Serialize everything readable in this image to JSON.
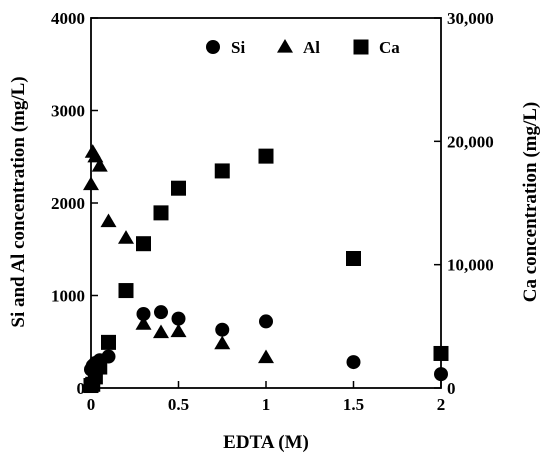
{
  "chart_data": {
    "type": "scatter",
    "title": "",
    "xlabel": "EDTA (M)",
    "ylabel_left": "Si and Al concentration (mg/L)",
    "ylabel_right": "Ca concentration (mg/L)",
    "xlim": [
      0,
      2
    ],
    "ylim_left": [
      0,
      4000
    ],
    "ylim_right": [
      0,
      30000
    ],
    "x_ticks": [
      0,
      0.5,
      1,
      1.5,
      2
    ],
    "x_tick_labels": [
      "0",
      "0.5",
      "1",
      "1.5",
      "2"
    ],
    "y_left_ticks": [
      0,
      1000,
      2000,
      3000,
      4000
    ],
    "y_left_tick_labels": [
      "0",
      "1000",
      "2000",
      "3000",
      "4000"
    ],
    "y_right_ticks": [
      0,
      10000,
      20000,
      30000
    ],
    "y_right_tick_labels": [
      "0",
      "10,000",
      "20,000",
      "30,000"
    ],
    "grid": false,
    "legend_position": "top-right",
    "series": [
      {
        "name": "Si",
        "marker": "circle",
        "axis": "left",
        "x": [
          0,
          0.01,
          0.025,
          0.05,
          0.1,
          0.3,
          0.4,
          0.5,
          0.75,
          1,
          1.5,
          2
        ],
        "y": [
          200,
          240,
          270,
          300,
          340,
          800,
          820,
          750,
          630,
          720,
          280,
          150
        ]
      },
      {
        "name": "Al",
        "marker": "triangle",
        "axis": "left",
        "x": [
          0,
          0.01,
          0.025,
          0.05,
          0.1,
          0.2,
          0.3,
          0.4,
          0.5,
          0.75,
          1
        ],
        "y": [
          2200,
          2550,
          2500,
          2400,
          1800,
          1620,
          690,
          600,
          610,
          480,
          330
        ]
      },
      {
        "name": "Ca",
        "marker": "square",
        "axis": "right",
        "x": [
          0,
          0.01,
          0.025,
          0.05,
          0.1,
          0.2,
          0.3,
          0.4,
          0.5,
          0.75,
          1,
          1.5,
          2
        ],
        "y": [
          200,
          300,
          900,
          1700,
          3700,
          7900,
          11700,
          14200,
          16200,
          17600,
          18800,
          10500,
          2800
        ]
      }
    ]
  }
}
